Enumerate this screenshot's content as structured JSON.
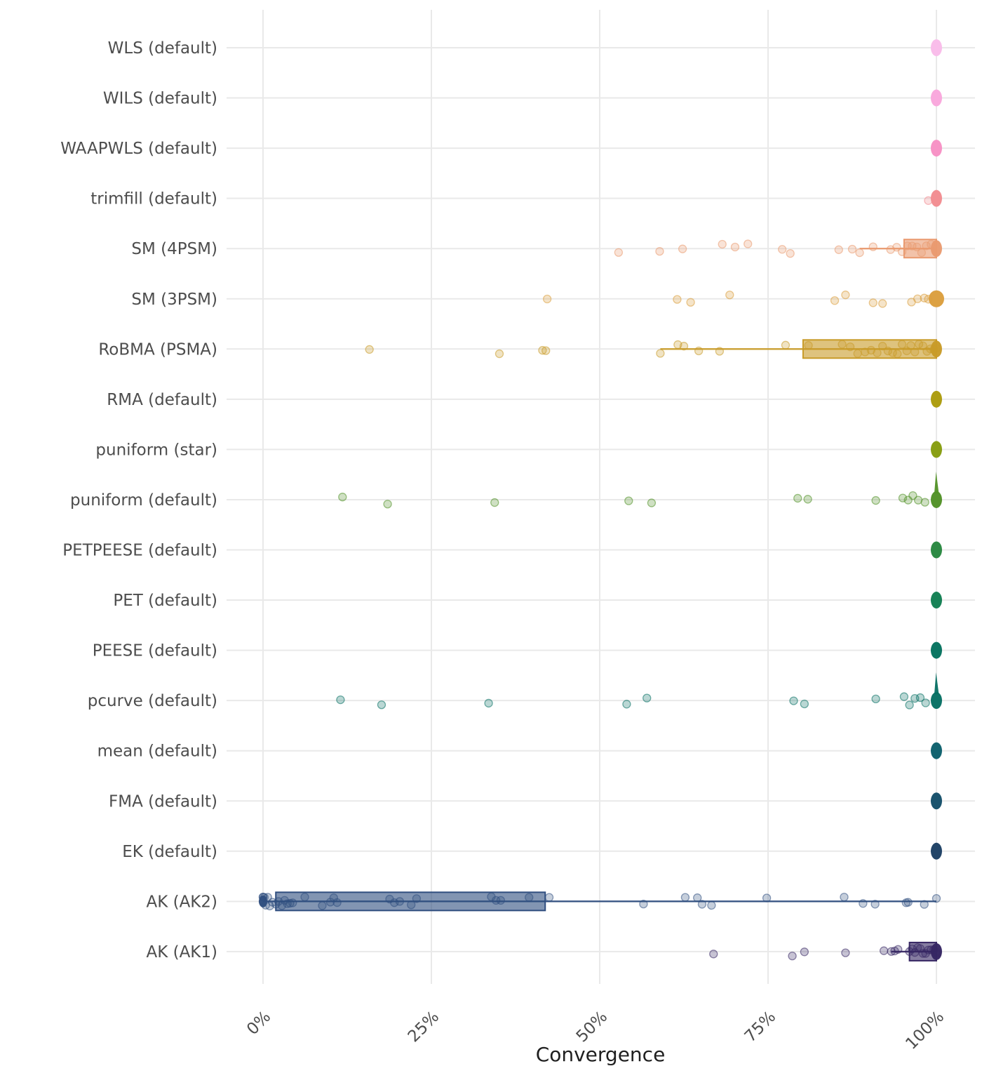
{
  "chart_data": {
    "type": "scatter",
    "subtype": "jittered-strip-with-boxplots",
    "orientation": "horizontal",
    "title": "",
    "xlabel": "Convergence",
    "ylabel": "",
    "xlim": [
      0,
      100
    ],
    "grid": true,
    "x_ticks": [
      {
        "value": 0,
        "label": "0%"
      },
      {
        "value": 25,
        "label": "25%"
      },
      {
        "value": 50,
        "label": "50%"
      },
      {
        "value": 75,
        "label": "75%"
      },
      {
        "value": 100,
        "label": "100%"
      }
    ],
    "rows": [
      {
        "label": "WLS (default)",
        "color": "#f9bbe9",
        "points": [],
        "cluster": 100
      },
      {
        "label": "WILS (default)",
        "color": "#f9a6dc",
        "points": [],
        "cluster": 100
      },
      {
        "label": "WAAPWLS (default)",
        "color": "#f790c4",
        "points": [],
        "cluster": 100
      },
      {
        "label": "trimfill (default)",
        "color": "#f28b90",
        "points": [
          98.8
        ],
        "cluster": 100
      },
      {
        "label": "SM (4PSM)",
        "color": "#e99a70",
        "points": [
          52.8,
          58.9,
          62.3,
          68.2,
          70.1,
          72.0,
          77.1,
          78.3,
          85.5,
          87.5,
          88.6,
          90.6,
          93.2,
          94.1,
          94.9,
          95.7,
          96.4,
          97.1,
          97.8,
          98.5,
          99.2
        ],
        "box": {
          "min": 88.6,
          "q1": 95.2,
          "q3": 100,
          "max": 100
        },
        "cluster": 100
      },
      {
        "label": "SM (3PSM)",
        "color": "#db9e3d",
        "points": [
          42.2,
          61.5,
          63.5,
          69.3,
          84.9,
          86.5,
          90.6,
          92.0,
          96.3,
          97.2,
          98.2,
          98.8
        ],
        "cluster": 100,
        "blob_rx": 11
      },
      {
        "label": "RoBMA (PSMA)",
        "color": "#c89b28",
        "points": [
          15.8,
          35.1,
          41.5,
          42.0,
          59.0,
          61.6,
          62.5,
          64.7,
          67.8,
          77.6,
          81.0,
          86.0,
          87.2,
          88.3,
          89.4,
          90.3,
          91.2,
          92.0,
          92.8,
          93.5,
          94.2,
          94.9,
          95.6,
          96.2,
          96.8,
          97.4,
          98.0,
          98.6,
          99.1,
          99.6,
          100
        ],
        "box": {
          "min": 59.0,
          "q1": 80.2,
          "q3": 100,
          "max": 100
        },
        "cluster": 100
      },
      {
        "label": "RMA (default)",
        "color": "#ab9b0b",
        "points": [],
        "cluster": 100
      },
      {
        "label": "puniform (star)",
        "color": "#859c0d",
        "points": [],
        "cluster": 100
      },
      {
        "label": "puniform (default)",
        "color": "#519126",
        "points": [
          11.8,
          18.5,
          34.4,
          54.3,
          57.7,
          79.4,
          80.9,
          91.0,
          95.0,
          95.8,
          96.5,
          97.3,
          98.3
        ],
        "cluster": 100,
        "spike": true
      },
      {
        "label": "PETPEESE (default)",
        "color": "#27873f",
        "points": [],
        "cluster": 100
      },
      {
        "label": "PET (default)",
        "color": "#117e52",
        "points": [],
        "cluster": 100
      },
      {
        "label": "PEESE (default)",
        "color": "#04725e",
        "points": [],
        "cluster": 100
      },
      {
        "label": "pcurve (default)",
        "color": "#066f63",
        "points": [
          11.5,
          17.6,
          33.5,
          54.0,
          57.0,
          78.8,
          80.4,
          91.0,
          95.2,
          96.0,
          96.8,
          97.6,
          98.4
        ],
        "cluster": 100,
        "spike": true
      },
      {
        "label": "mean (default)",
        "color": "#0b5f6b",
        "points": [],
        "cluster": 100
      },
      {
        "label": "FMA (default)",
        "color": "#144e69",
        "points": [],
        "cluster": 100
      },
      {
        "label": "EK (default)",
        "color": "#1c3f63",
        "points": [],
        "cluster": 100
      },
      {
        "label": "AK (AK2)",
        "color": "#2f4e7f",
        "points": [
          0,
          0,
          0,
          0.2,
          0.4,
          0.7,
          1.0,
          1.4,
          1.9,
          2.3,
          2.8,
          3.2,
          3.6,
          4.0,
          4.4,
          6.2,
          8.8,
          10.0,
          10.5,
          11.0,
          18.8,
          19.5,
          20.3,
          22.0,
          22.8,
          33.9,
          34.6,
          35.3,
          39.5,
          42.5,
          56.5,
          62.7,
          64.5,
          65.2,
          66.6,
          74.8,
          86.3,
          89.1,
          90.9,
          95.5,
          95.8,
          98.2,
          100
        ],
        "box": {
          "min": 0,
          "q1": 1.9,
          "q3": 41.9,
          "max": 100
        },
        "cluster": 0,
        "blob_rx": 6,
        "blob_ry": 8.5
      },
      {
        "label": "AK (AK1)",
        "color": "#362663",
        "points": [
          66.9,
          78.6,
          80.4,
          86.5,
          92.2,
          93.3,
          93.8,
          94.3,
          96.0,
          96.4,
          96.8,
          97.2,
          97.6,
          98.0,
          98.4,
          98.8,
          99.2,
          99.6,
          100,
          100
        ],
        "box": {
          "min": 93.3,
          "q1": 96.0,
          "q3": 100,
          "max": 100
        },
        "cluster": 100
      }
    ]
  }
}
